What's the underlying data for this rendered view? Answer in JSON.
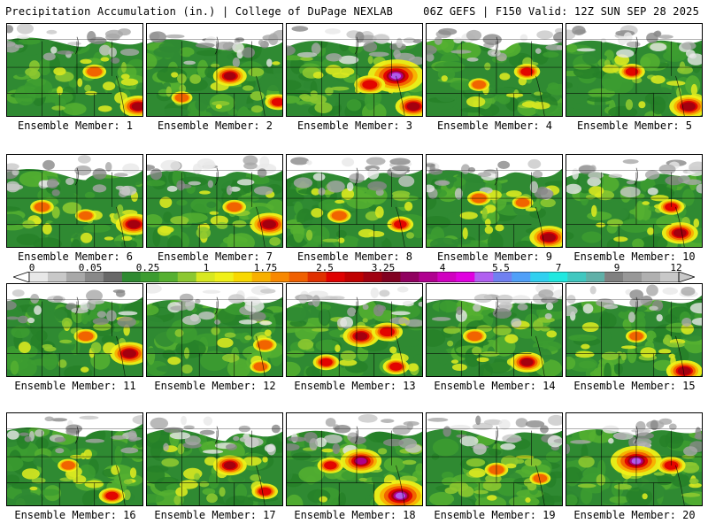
{
  "header": {
    "left": "Precipitation Accumulation (in.) | College of DuPage NEXLAB",
    "right": "06Z GEFS | F150 Valid: 12Z SUN SEP 28 2025"
  },
  "colorbar": {
    "labels": [
      "0",
      "0.05",
      "0.25",
      "1",
      "1.75",
      "2.5",
      "3.25",
      "4",
      "5.5",
      "7",
      "9",
      "12"
    ],
    "colors": [
      "#e8e8e8",
      "#c8c8c8",
      "#a8a8a8",
      "#888888",
      "#686868",
      "#2f8a32",
      "#3c9c30",
      "#55b030",
      "#8cc830",
      "#d8e820",
      "#f0f018",
      "#f8d800",
      "#f8b000",
      "#f88800",
      "#f06000",
      "#e03000",
      "#e00000",
      "#c00000",
      "#a00010",
      "#800020",
      "#900060",
      "#b00090",
      "#d000c0",
      "#e000e0",
      "#b060f0",
      "#7080f0",
      "#50a0f8",
      "#30d0f0",
      "#20e8e0",
      "#40c8c0",
      "#60b0a8",
      "#808080",
      "#989898",
      "#b0b0b0",
      "#c8c8c8"
    ]
  },
  "panels": [
    {
      "label": "Ensemble Member: 1",
      "hot": [
        [
          100,
          55,
          1.6
        ],
        [
          150,
          95,
          2.6
        ]
      ]
    },
    {
      "label": "Ensemble Member: 2",
      "hot": [
        [
          95,
          60,
          2.4
        ],
        [
          40,
          85,
          1.4
        ],
        [
          150,
          90,
          1.8
        ]
      ]
    },
    {
      "label": "Ensemble Member: 3",
      "hot": [
        [
          125,
          60,
          4.2
        ],
        [
          95,
          70,
          2.2
        ],
        [
          145,
          95,
          2.6
        ]
      ]
    },
    {
      "label": "Ensemble Member: 4",
      "hot": [
        [
          115,
          55,
          1.8
        ],
        [
          60,
          70,
          1.4
        ]
      ]
    },
    {
      "label": "Ensemble Member: 5",
      "hot": [
        [
          75,
          55,
          1.8
        ],
        [
          140,
          95,
          2.8
        ]
      ]
    },
    {
      "label": "Ensemble Member: 6",
      "hot": [
        [
          40,
          60,
          1.6
        ],
        [
          145,
          80,
          2.6
        ],
        [
          90,
          70,
          1.4
        ]
      ]
    },
    {
      "label": "Ensemble Member: 7",
      "hot": [
        [
          140,
          80,
          2.8
        ],
        [
          100,
          60,
          1.6
        ]
      ]
    },
    {
      "label": "Ensemble Member: 8",
      "hot": [
        [
          60,
          70,
          1.6
        ],
        [
          130,
          80,
          1.8
        ]
      ]
    },
    {
      "label": "Ensemble Member: 9",
      "hot": [
        [
          140,
          95,
          2.8
        ],
        [
          60,
          50,
          1.6
        ],
        [
          110,
          55,
          1.4
        ]
      ]
    },
    {
      "label": "Ensemble Member: 10",
      "hot": [
        [
          130,
          90,
          2.6
        ],
        [
          120,
          60,
          1.8
        ]
      ]
    },
    {
      "label": "Ensemble Member: 11",
      "hot": [
        [
          140,
          80,
          2.8
        ],
        [
          90,
          60,
          1.6
        ]
      ]
    },
    {
      "label": "Ensemble Member: 12",
      "hot": [
        [
          135,
          70,
          1.6
        ],
        [
          130,
          95,
          1.4
        ]
      ]
    },
    {
      "label": "Ensemble Member: 13",
      "hot": [
        [
          85,
          60,
          2.6
        ],
        [
          115,
          55,
          2.2
        ],
        [
          45,
          90,
          1.8
        ],
        [
          125,
          95,
          1.8
        ]
      ]
    },
    {
      "label": "Ensemble Member: 14",
      "hot": [
        [
          55,
          60,
          1.6
        ],
        [
          115,
          90,
          2.4
        ]
      ]
    },
    {
      "label": "Ensemble Member: 15",
      "hot": [
        [
          135,
          100,
          2.6
        ],
        [
          80,
          60,
          1.4
        ]
      ]
    },
    {
      "label": "Ensemble Member: 16",
      "hot": [
        [
          120,
          95,
          1.8
        ],
        [
          70,
          60,
          1.4
        ]
      ]
    },
    {
      "label": "Ensemble Member: 17",
      "hot": [
        [
          95,
          60,
          2.4
        ],
        [
          135,
          90,
          1.8
        ]
      ]
    },
    {
      "label": "Ensemble Member: 18",
      "hot": [
        [
          85,
          55,
          3.0
        ],
        [
          130,
          95,
          4.0
        ],
        [
          50,
          60,
          1.8
        ]
      ]
    },
    {
      "label": "Ensemble Member: 19",
      "hot": [
        [
          80,
          65,
          1.6
        ],
        [
          130,
          75,
          1.4
        ]
      ]
    },
    {
      "label": "Ensemble Member: 20",
      "hot": [
        [
          80,
          55,
          3.8
        ],
        [
          120,
          60,
          2.0
        ]
      ]
    }
  ]
}
